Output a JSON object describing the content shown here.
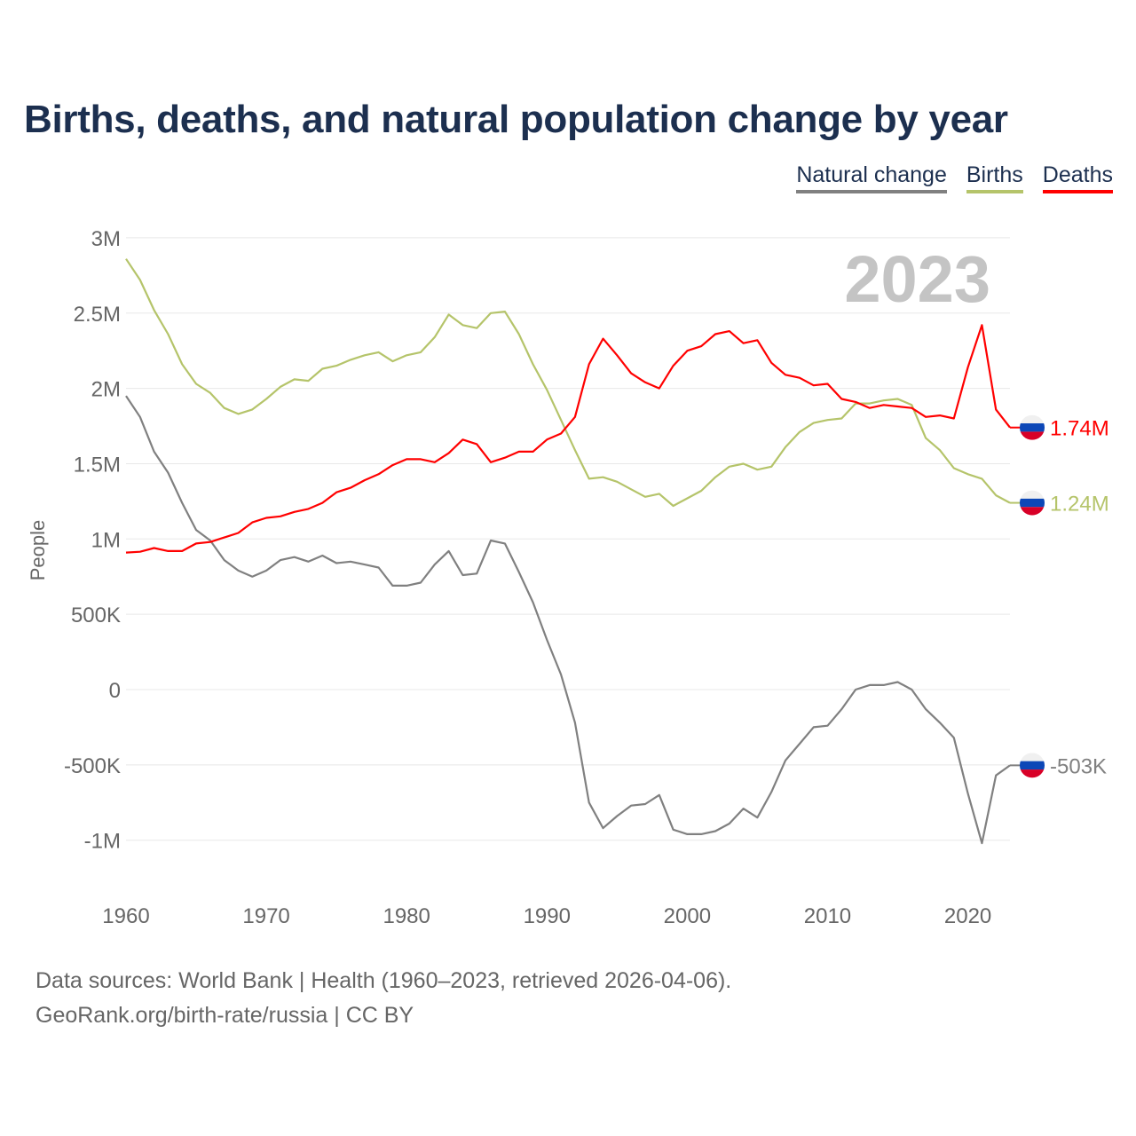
{
  "title": "Births, deaths, and natural population change by year",
  "legend": [
    {
      "label": "Natural change",
      "color": "#808080"
    },
    {
      "label": "Births",
      "color": "#b5c46a"
    },
    {
      "label": "Deaths",
      "color": "#ff0000"
    }
  ],
  "year_label": "2023",
  "footer": {
    "line1": "Data sources: World Bank | Health (1960–2023, retrieved 2026-04-06).",
    "line2": "GeoRank.org/birth-rate/russia | CC BY"
  },
  "chart_data": {
    "type": "line",
    "title": "Births, deaths, and natural population change by year",
    "xlabel": "",
    "ylabel": "People",
    "unit": "millions",
    "xlim": [
      1960,
      2023
    ],
    "ylim": [
      -1.2,
      3
    ],
    "xticks": [
      1960,
      1970,
      1980,
      1990,
      2000,
      2010,
      2020
    ],
    "yticks": [
      {
        "v": 3,
        "label": "3M"
      },
      {
        "v": 2.5,
        "label": "2.5M"
      },
      {
        "v": 2,
        "label": "2M"
      },
      {
        "v": 1.5,
        "label": "1.5M"
      },
      {
        "v": 1,
        "label": "1M"
      },
      {
        "v": 0.5,
        "label": "500K"
      },
      {
        "v": 0,
        "label": "0"
      },
      {
        "v": -0.5,
        "label": "-500K"
      },
      {
        "v": -1,
        "label": "-1M"
      }
    ],
    "grid": true,
    "legend_position": "top-right",
    "x_start": 1960,
    "series": [
      {
        "name": "Natural change",
        "color": "#808080",
        "end_label": "-503K",
        "values": [
          1.95,
          1.81,
          1.58,
          1.44,
          1.24,
          1.06,
          0.99,
          0.86,
          0.79,
          0.75,
          0.79,
          0.86,
          0.88,
          0.85,
          0.89,
          0.84,
          0.85,
          0.83,
          0.81,
          0.69,
          0.69,
          0.71,
          0.83,
          0.92,
          0.76,
          0.77,
          0.99,
          0.97,
          0.78,
          0.58,
          0.33,
          0.1,
          -0.22,
          -0.75,
          -0.92,
          -0.84,
          -0.77,
          -0.76,
          -0.7,
          -0.93,
          -0.96,
          -0.96,
          -0.94,
          -0.89,
          -0.79,
          -0.85,
          -0.68,
          -0.47,
          -0.36,
          -0.25,
          -0.24,
          -0.13,
          0.0,
          0.03,
          0.03,
          0.05,
          0.0,
          -0.13,
          -0.22,
          -0.32,
          -0.69,
          -1.02,
          -0.57,
          -0.503
        ]
      },
      {
        "name": "Births",
        "color": "#b5c46a",
        "end_label": "1.24M",
        "values": [
          2.86,
          2.72,
          2.52,
          2.36,
          2.16,
          2.03,
          1.97,
          1.87,
          1.83,
          1.86,
          1.93,
          2.01,
          2.06,
          2.05,
          2.13,
          2.15,
          2.19,
          2.22,
          2.24,
          2.18,
          2.22,
          2.24,
          2.34,
          2.49,
          2.42,
          2.4,
          2.5,
          2.51,
          2.36,
          2.16,
          1.99,
          1.79,
          1.59,
          1.4,
          1.41,
          1.38,
          1.33,
          1.28,
          1.3,
          1.22,
          1.27,
          1.32,
          1.41,
          1.48,
          1.5,
          1.46,
          1.48,
          1.61,
          1.71,
          1.77,
          1.79,
          1.8,
          1.9,
          1.9,
          1.92,
          1.93,
          1.89,
          1.67,
          1.59,
          1.47,
          1.43,
          1.4,
          1.29,
          1.24
        ]
      },
      {
        "name": "Deaths",
        "color": "#ff0000",
        "end_label": "1.74M",
        "values": [
          0.91,
          0.915,
          0.94,
          0.92,
          0.92,
          0.97,
          0.98,
          1.01,
          1.04,
          1.11,
          1.14,
          1.15,
          1.18,
          1.2,
          1.24,
          1.31,
          1.34,
          1.39,
          1.43,
          1.49,
          1.53,
          1.53,
          1.51,
          1.57,
          1.66,
          1.63,
          1.51,
          1.54,
          1.58,
          1.58,
          1.66,
          1.7,
          1.81,
          2.16,
          2.33,
          2.22,
          2.1,
          2.04,
          2.0,
          2.15,
          2.25,
          2.28,
          2.36,
          2.38,
          2.3,
          2.32,
          2.17,
          2.09,
          2.07,
          2.02,
          2.03,
          1.93,
          1.91,
          1.87,
          1.89,
          1.88,
          1.87,
          1.81,
          1.82,
          1.8,
          2.14,
          2.42,
          1.86,
          1.74
        ]
      }
    ]
  }
}
